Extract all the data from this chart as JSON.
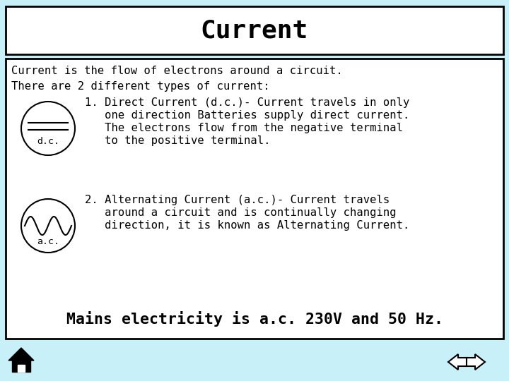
{
  "title": "Current",
  "bg_color": "#c8f0f8",
  "title_bg": "#ffffff",
  "content_bg": "#ffffff",
  "title_font_size": 26,
  "line1": "Current is the flow of electrons around a circuit.",
  "line2": "There are 2 different types of current:",
  "footer": "Mains electricity is a.c. 230V and 50 Hz.",
  "dc_label": "d.c.",
  "ac_label": "a.c.",
  "dc_text_line1": "1. Direct Current (d.c.)- Current travels in only",
  "dc_text_line2": "   one direction Batteries supply direct current.",
  "dc_text_line3": "   The electrons flow from the negative terminal",
  "dc_text_line4": "   to the positive terminal.",
  "ac_text_line1": "2. Alternating Current (a.c.)- Current travels",
  "ac_text_line2": "   around a circuit and is continually changing",
  "ac_text_line3": "   direction, it is known as Alternating Current."
}
